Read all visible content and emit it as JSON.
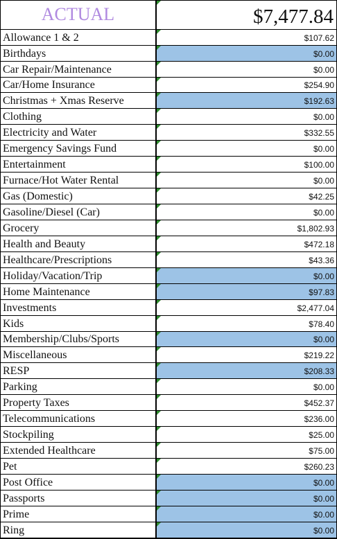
{
  "header": {
    "title": "ACTUAL",
    "total": "$7,477.84"
  },
  "accent": {
    "title_color": "#b08ae0",
    "highlight": "#9dc3e6",
    "comment_marker": "#2e8b2e"
  },
  "rows": [
    {
      "label": "Allowance 1 & 2",
      "value": "$107.62",
      "highlight": false
    },
    {
      "label": "Birthdays",
      "value": "$0.00",
      "highlight": true
    },
    {
      "label": "Car Repair/Maintenance",
      "value": "$0.00",
      "highlight": false
    },
    {
      "label": "Car/Home Insurance",
      "value": "$254.90",
      "highlight": false
    },
    {
      "label": "Christmas + Xmas Reserve",
      "value": "$192.63",
      "highlight": true
    },
    {
      "label": "Clothing",
      "value": "$0.00",
      "highlight": false
    },
    {
      "label": "Electricity and Water",
      "value": "$332.55",
      "highlight": false
    },
    {
      "label": "Emergency Savings Fund",
      "value": "$0.00",
      "highlight": false
    },
    {
      "label": "Entertainment",
      "value": "$100.00",
      "highlight": false
    },
    {
      "label": "Furnace/Hot Water Rental",
      "value": "$0.00",
      "highlight": false
    },
    {
      "label": "Gas (Domestic)",
      "value": "$42.25",
      "highlight": false
    },
    {
      "label": "Gasoline/Diesel (Car)",
      "value": "$0.00",
      "highlight": false
    },
    {
      "label": "Grocery",
      "value": "$1,802.93",
      "highlight": false
    },
    {
      "label": "Health and Beauty",
      "value": "$472.18",
      "highlight": false
    },
    {
      "label": "Healthcare/Prescriptions",
      "value": "$43.36",
      "highlight": false
    },
    {
      "label": "Holiday/Vacation/Trip",
      "value": "$0.00",
      "highlight": true
    },
    {
      "label": "Home Maintenance",
      "value": "$97.83",
      "highlight": true
    },
    {
      "label": "Investments",
      "value": "$2,477.04",
      "highlight": false
    },
    {
      "label": "Kids",
      "value": "$78.40",
      "highlight": false
    },
    {
      "label": "Membership/Clubs/Sports",
      "value": "$0.00",
      "highlight": true
    },
    {
      "label": "Miscellaneous",
      "value": "$219.22",
      "highlight": false
    },
    {
      "label": "RESP",
      "value": "$208.33",
      "highlight": true
    },
    {
      "label": "Parking",
      "value": "$0.00",
      "highlight": false
    },
    {
      "label": "Property Taxes",
      "value": "$452.37",
      "highlight": false
    },
    {
      "label": "Telecommunications",
      "value": "$236.00",
      "highlight": false
    },
    {
      "label": "Stockpiling",
      "value": "$25.00",
      "highlight": false
    },
    {
      "label": "Extended Healthcare",
      "value": "$75.00",
      "highlight": false
    },
    {
      "label": "Pet",
      "value": "$260.23",
      "highlight": false
    },
    {
      "label": "Post Office",
      "value": "$0.00",
      "highlight": true
    },
    {
      "label": "Passports",
      "value": "$0.00",
      "highlight": true
    },
    {
      "label": "Prime",
      "value": "$0.00",
      "highlight": true
    },
    {
      "label": "Ring",
      "value": "$0.00",
      "highlight": true
    }
  ]
}
